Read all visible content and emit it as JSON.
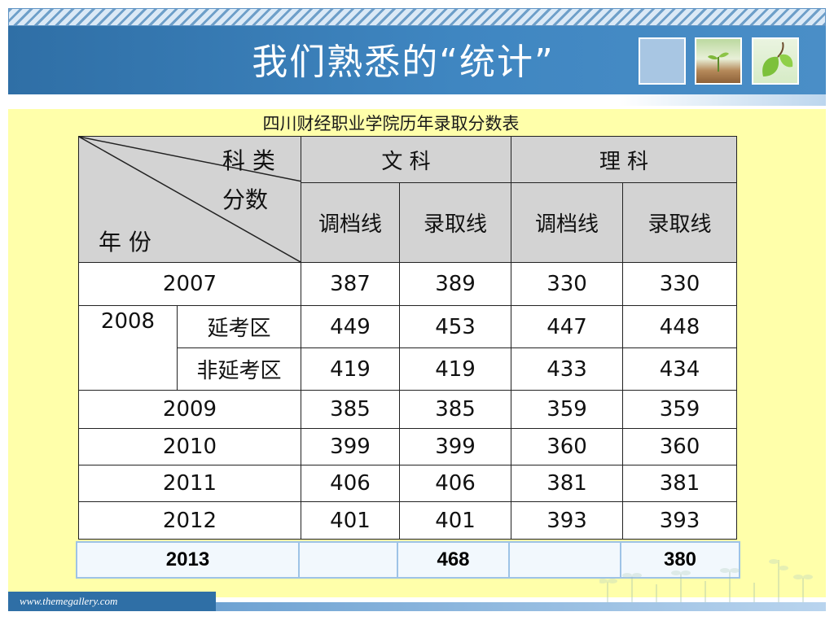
{
  "slide": {
    "title": "我们熟悉的“统计”",
    "footer_url": "www.themegallery.com"
  },
  "table": {
    "caption": "四川财经职业学院历年录取分数表",
    "diagonal_header": {
      "top": "科 类",
      "middle": "分数",
      "bottom": "年 份"
    },
    "groups": [
      "文 科",
      "理 科"
    ],
    "subheaders": [
      "调档线",
      "录取线",
      "调档线",
      "录取线"
    ],
    "rows": [
      {
        "year": "2007",
        "values": [
          "387",
          "389",
          "330",
          "330"
        ]
      },
      {
        "year": "2008",
        "sub": "延考区",
        "values": [
          "449",
          "453",
          "447",
          "448"
        ]
      },
      {
        "sub": "非延考区",
        "values": [
          "419",
          "419",
          "433",
          "434"
        ]
      },
      {
        "year": "2009",
        "values": [
          "385",
          "385",
          "359",
          "359"
        ]
      },
      {
        "year": "2010",
        "values": [
          "399",
          "399",
          "360",
          "360"
        ]
      },
      {
        "year": "2011",
        "values": [
          "406",
          "406",
          "381",
          "381"
        ]
      },
      {
        "year": "2012",
        "values": [
          "401",
          "401",
          "393",
          "393"
        ]
      }
    ],
    "row_2013": {
      "year": "2013",
      "values": [
        "",
        "468",
        "",
        "380"
      ]
    }
  },
  "colors": {
    "title_bar": "#2f6fa6",
    "content_bg": "#ffffaa",
    "header_gray": "#d3d3d3"
  }
}
